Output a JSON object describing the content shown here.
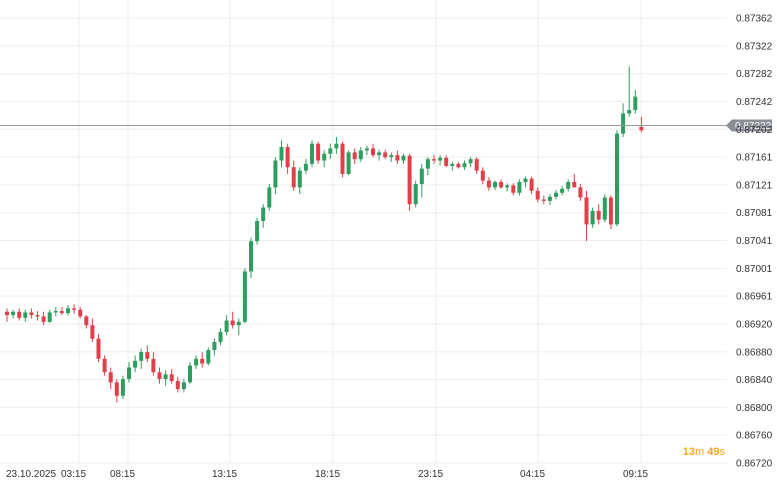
{
  "chart_data": {
    "type": "candlestick",
    "title": "",
    "xlabel": "",
    "ylabel": "",
    "ylim": [
      0.8672,
      0.87382
    ],
    "y_ticks": [
      "0.87362",
      "0.87322",
      "0.87282",
      "0.87242",
      "0.87202",
      "0.87161",
      "0.87121",
      "0.87081",
      "0.87041",
      "0.87001",
      "0.86961",
      "0.86920",
      "0.86880",
      "0.86840",
      "0.86800",
      "0.86760",
      "0.86720"
    ],
    "x_ticks": [
      "23.10.2025",
      "03:15",
      "08:15",
      "13:15",
      "18:15",
      "23:15",
      "04:15",
      "09:15"
    ],
    "grid": true,
    "current_price": "0.87222",
    "current_value": 0.87222,
    "colors": {
      "up": "#2e9e5e",
      "down": "#e0404a",
      "grid": "#eeeeee",
      "price_line": "#999999",
      "price_tag": "#8a8f96"
    },
    "candles": [
      [
        0.86945,
        0.8695,
        0.8693,
        0.8694
      ],
      [
        0.8694,
        0.86948,
        0.86935,
        0.86945
      ],
      [
        0.86945,
        0.8695,
        0.86932,
        0.86936
      ],
      [
        0.86936,
        0.86948,
        0.8693,
        0.86944
      ],
      [
        0.86944,
        0.8695,
        0.86935,
        0.8694
      ],
      [
        0.8694,
        0.86946,
        0.86932,
        0.86938
      ],
      [
        0.86938,
        0.86945,
        0.86925,
        0.8693
      ],
      [
        0.8693,
        0.86948,
        0.86928,
        0.86944
      ],
      [
        0.86944,
        0.86952,
        0.86938,
        0.86946
      ],
      [
        0.86946,
        0.86952,
        0.8694,
        0.86943
      ],
      [
        0.86943,
        0.86955,
        0.8694,
        0.8695
      ],
      [
        0.8695,
        0.86956,
        0.86942,
        0.86948
      ],
      [
        0.86948,
        0.86952,
        0.86935,
        0.86938
      ],
      [
        0.86938,
        0.8694,
        0.8692,
        0.86925
      ],
      [
        0.86925,
        0.86935,
        0.869,
        0.86905
      ],
      [
        0.86905,
        0.86912,
        0.8687,
        0.86875
      ],
      [
        0.86875,
        0.8688,
        0.8685,
        0.86855
      ],
      [
        0.86855,
        0.86862,
        0.8683,
        0.8684
      ],
      [
        0.8684,
        0.86845,
        0.8681,
        0.8682
      ],
      [
        0.8682,
        0.8685,
        0.86815,
        0.86845
      ],
      [
        0.86845,
        0.8687,
        0.8684,
        0.86862
      ],
      [
        0.86862,
        0.8688,
        0.86855,
        0.86872
      ],
      [
        0.86872,
        0.8689,
        0.8686,
        0.86885
      ],
      [
        0.86885,
        0.86895,
        0.8687,
        0.86875
      ],
      [
        0.86875,
        0.86885,
        0.8685,
        0.86855
      ],
      [
        0.86855,
        0.86862,
        0.86838,
        0.86845
      ],
      [
        0.86845,
        0.86858,
        0.86835,
        0.86852
      ],
      [
        0.86852,
        0.8686,
        0.86838,
        0.86842
      ],
      [
        0.86842,
        0.86848,
        0.86825,
        0.8683
      ],
      [
        0.8683,
        0.86845,
        0.86825,
        0.8684
      ],
      [
        0.8684,
        0.8687,
        0.86838,
        0.86865
      ],
      [
        0.86865,
        0.8688,
        0.8686,
        0.86875
      ],
      [
        0.86875,
        0.86885,
        0.86862,
        0.86868
      ],
      [
        0.86868,
        0.86892,
        0.86865,
        0.86888
      ],
      [
        0.86888,
        0.86905,
        0.8688,
        0.869
      ],
      [
        0.869,
        0.8692,
        0.86895,
        0.86915
      ],
      [
        0.86915,
        0.8694,
        0.8691,
        0.86932
      ],
      [
        0.86932,
        0.86945,
        0.8692,
        0.86925
      ],
      [
        0.86925,
        0.86935,
        0.8691,
        0.8693
      ],
      [
        0.8693,
        0.8701,
        0.86928,
        0.87005
      ],
      [
        0.87005,
        0.87055,
        0.86995,
        0.8705
      ],
      [
        0.8705,
        0.87085,
        0.87045,
        0.8708
      ],
      [
        0.8708,
        0.87105,
        0.8707,
        0.871
      ],
      [
        0.871,
        0.87135,
        0.87095,
        0.8713
      ],
      [
        0.8713,
        0.87175,
        0.8712,
        0.8717
      ],
      [
        0.8717,
        0.872,
        0.8716,
        0.8719
      ],
      [
        0.8719,
        0.87195,
        0.8715,
        0.8716
      ],
      [
        0.8716,
        0.8717,
        0.87125,
        0.8713
      ],
      [
        0.8713,
        0.8716,
        0.8712,
        0.87155
      ],
      [
        0.87155,
        0.87172,
        0.8715,
        0.87165
      ],
      [
        0.87165,
        0.872,
        0.8716,
        0.87195
      ],
      [
        0.87195,
        0.87198,
        0.87165,
        0.8717
      ],
      [
        0.8717,
        0.87185,
        0.8716,
        0.8718
      ],
      [
        0.8718,
        0.87195,
        0.87172,
        0.87188
      ],
      [
        0.87188,
        0.87205,
        0.8718,
        0.87195
      ],
      [
        0.87195,
        0.87198,
        0.87145,
        0.8715
      ],
      [
        0.8715,
        0.87185,
        0.87148,
        0.87182
      ],
      [
        0.87182,
        0.87188,
        0.87165,
        0.87172
      ],
      [
        0.87172,
        0.8719,
        0.87168,
        0.87185
      ],
      [
        0.87185,
        0.87192,
        0.87178,
        0.87188
      ],
      [
        0.87188,
        0.87195,
        0.87175,
        0.87178
      ],
      [
        0.87178,
        0.87186,
        0.8717,
        0.87182
      ],
      [
        0.87182,
        0.87186,
        0.87172,
        0.87175
      ],
      [
        0.87175,
        0.87182,
        0.87168,
        0.87178
      ],
      [
        0.87178,
        0.87185,
        0.87165,
        0.8717
      ],
      [
        0.8717,
        0.8718,
        0.87165,
        0.87177
      ],
      [
        0.87177,
        0.8718,
        0.87095,
        0.87105
      ],
      [
        0.87105,
        0.8714,
        0.871,
        0.87135
      ],
      [
        0.87135,
        0.87165,
        0.87115,
        0.87158
      ],
      [
        0.87158,
        0.87175,
        0.87148,
        0.87172
      ],
      [
        0.87172,
        0.87178,
        0.87165,
        0.8717
      ],
      [
        0.8717,
        0.87178,
        0.87163,
        0.87174
      ],
      [
        0.87174,
        0.87178,
        0.8716,
        0.87162
      ],
      [
        0.87162,
        0.87168,
        0.87155,
        0.87165
      ],
      [
        0.87165,
        0.87168,
        0.87158,
        0.8716
      ],
      [
        0.8716,
        0.8717,
        0.87156,
        0.87166
      ],
      [
        0.87166,
        0.87175,
        0.8716,
        0.87172
      ],
      [
        0.87172,
        0.87175,
        0.8715,
        0.87155
      ],
      [
        0.87155,
        0.8716,
        0.87135,
        0.8714
      ],
      [
        0.8714,
        0.87145,
        0.87125,
        0.8713
      ],
      [
        0.8713,
        0.8714,
        0.87126,
        0.87138
      ],
      [
        0.87138,
        0.87142,
        0.87128,
        0.8713
      ],
      [
        0.8713,
        0.87136,
        0.87124,
        0.87133
      ],
      [
        0.87133,
        0.87136,
        0.87118,
        0.87122
      ],
      [
        0.87122,
        0.87142,
        0.87118,
        0.87138
      ],
      [
        0.87138,
        0.87146,
        0.8713,
        0.87143
      ],
      [
        0.87143,
        0.87146,
        0.8712,
        0.87125
      ],
      [
        0.87125,
        0.8713,
        0.87108,
        0.87112
      ],
      [
        0.87112,
        0.87118,
        0.87105,
        0.8711
      ],
      [
        0.8711,
        0.8712,
        0.87104,
        0.87116
      ],
      [
        0.87116,
        0.87126,
        0.87112,
        0.87122
      ],
      [
        0.87122,
        0.87132,
        0.87118,
        0.87128
      ],
      [
        0.87128,
        0.87142,
        0.87124,
        0.87138
      ],
      [
        0.87138,
        0.8715,
        0.8713,
        0.8713
      ],
      [
        0.8713,
        0.87135,
        0.8711,
        0.87115
      ],
      [
        0.87115,
        0.87125,
        0.8705,
        0.87075
      ],
      [
        0.87075,
        0.871,
        0.8707,
        0.87095
      ],
      [
        0.87095,
        0.87105,
        0.87075,
        0.87082
      ],
      [
        0.87082,
        0.8712,
        0.87078,
        0.87115
      ],
      [
        0.87115,
        0.87118,
        0.87068,
        0.87075
      ],
      [
        0.87075,
        0.87215,
        0.87072,
        0.8721
      ],
      [
        0.8721,
        0.87255,
        0.87205,
        0.8724
      ],
      [
        0.8724,
        0.8731,
        0.87235,
        0.87245
      ],
      [
        0.87245,
        0.87275,
        0.8724,
        0.87265
      ],
      [
        0.8722,
        0.87235,
        0.87212,
        0.87215
      ]
    ]
  },
  "timer": {
    "minutes": "13",
    "minutes_unit": "m",
    "seconds": "49",
    "seconds_unit": "s"
  }
}
